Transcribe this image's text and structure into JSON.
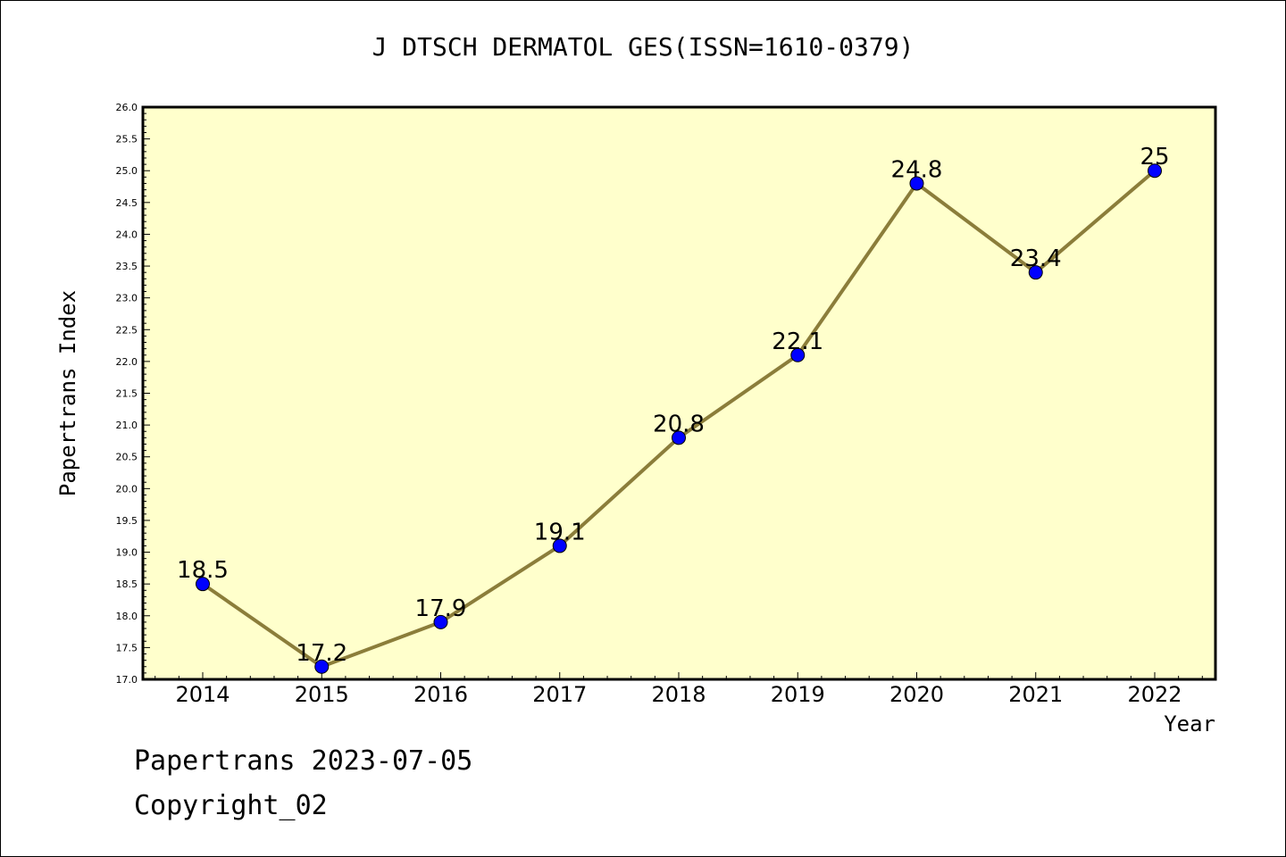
{
  "title": "J DTSCH DERMATOL GES(ISSN=1610-0379)",
  "footer": {
    "date_text": "Papertrans 2023-07-05",
    "copyright_text": "Copyright_02"
  },
  "colors": {
    "plot_background": "#ffffcc",
    "line": "#8b7d3a",
    "marker": "#0000ff"
  },
  "chart_data": {
    "type": "line",
    "title": "J DTSCH DERMATOL GES(ISSN=1610-0379)",
    "xlabel": "Year",
    "ylabel": "Papertrans Index",
    "categories": [
      "2014",
      "2015",
      "2016",
      "2017",
      "2018",
      "2019",
      "2020",
      "2021",
      "2022"
    ],
    "series": [
      {
        "values": [
          18.5,
          17.2,
          17.9,
          19.1,
          20.8,
          22.1,
          24.8,
          23.4,
          25
        ],
        "data_labels": [
          "18.5",
          "17.2",
          "17.9",
          "19.1",
          "20.8",
          "22.1",
          "24.8",
          "23.4",
          "25"
        ]
      }
    ],
    "ylim": [
      17.0,
      26.0
    ],
    "y_ticks": [
      "17.0",
      "17.5",
      "18.0",
      "18.5",
      "19.0",
      "19.5",
      "20.0",
      "20.5",
      "21.0",
      "21.5",
      "22.0",
      "22.5",
      "23.0",
      "23.5",
      "24.0",
      "24.5",
      "25.0",
      "25.5",
      "26.0"
    ],
    "grid": false,
    "legend": "none"
  }
}
